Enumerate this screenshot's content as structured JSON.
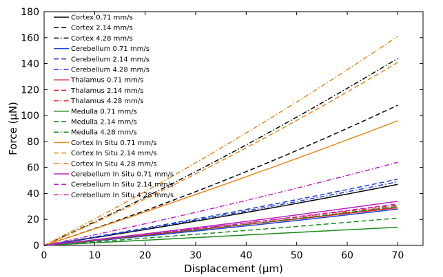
{
  "chart_data": {
    "type": "line",
    "title": "",
    "xlabel": "Displacement (μm)",
    "ylabel": "Force (μN)",
    "xlim": [
      0,
      75
    ],
    "ylim": [
      0,
      180
    ],
    "xticks": [
      "0",
      "10",
      "20",
      "30",
      "40",
      "50",
      "60",
      "70"
    ],
    "yticks": [
      "0",
      "20",
      "40",
      "60",
      "80",
      "100",
      "120",
      "140",
      "160",
      "180"
    ],
    "grid": false,
    "legend_position": "top-left",
    "series": [
      {
        "name": "Cortex 0.71 mm/s",
        "color": "#000000",
        "dash": "solid",
        "x": [
          0,
          35,
          70
        ],
        "y": [
          0,
          22,
          47
        ]
      },
      {
        "name": "Cortex 2.14 mm/s",
        "color": "#000000",
        "dash": "dashed",
        "x": [
          0,
          35,
          70
        ],
        "y": [
          0,
          49,
          108
        ]
      },
      {
        "name": "Cortex 4.28 mm/s",
        "color": "#000000",
        "dash": "dashdot",
        "x": [
          0,
          35,
          70
        ],
        "y": [
          0,
          67,
          144
        ]
      },
      {
        "name": "Cerebellum 0.71 mm/s",
        "color": "#1f3fd6",
        "dash": "solid",
        "x": [
          0,
          35,
          70
        ],
        "y": [
          0,
          13,
          28
        ]
      },
      {
        "name": "Cerebellum 2.14 mm/s",
        "color": "#1f3fd6",
        "dash": "dashed",
        "x": [
          0,
          35,
          70
        ],
        "y": [
          0,
          24,
          51
        ]
      },
      {
        "name": "Cerebellum 4.28 mm/s",
        "color": "#1f3fd6",
        "dash": "dashdot",
        "x": [
          0,
          35,
          70
        ],
        "y": [
          0,
          23,
          49
        ]
      },
      {
        "name": "Thalamus 0.71 mm/s",
        "color": "#e02020",
        "dash": "solid",
        "x": [
          0,
          35,
          70
        ],
        "y": [
          0,
          14,
          29
        ]
      },
      {
        "name": "Thalamus 2.14 mm/s",
        "color": "#e02020",
        "dash": "dashed",
        "x": [
          0,
          35,
          70
        ],
        "y": [
          0,
          14,
          30
        ]
      },
      {
        "name": "Thalamus 4.28 mm/s",
        "color": "#e02020",
        "dash": "dashdot",
        "x": [
          0,
          35,
          70
        ],
        "y": [
          0,
          15,
          31
        ]
      },
      {
        "name": "Medulla 0.71 mm/s",
        "color": "#1a8a1a",
        "dash": "solid",
        "x": [
          0,
          35,
          70
        ],
        "y": [
          0,
          7,
          14
        ]
      },
      {
        "name": "Medulla 2.14 mm/s",
        "color": "#1a8a1a",
        "dash": "dashed",
        "x": [
          0,
          35,
          70
        ],
        "y": [
          0,
          10,
          21
        ]
      },
      {
        "name": "Medulla 4.28 mm/s",
        "color": "#1a8a1a",
        "dash": "dashdot",
        "x": [
          0,
          35,
          70
        ],
        "y": [
          0,
          14,
          30
        ]
      },
      {
        "name": "Cortex In Situ 0.71 mm/s",
        "color": "#e8891a",
        "dash": "solid",
        "x": [
          0,
          35,
          70
        ],
        "y": [
          0,
          46,
          96
        ]
      },
      {
        "name": "Cortex In Situ 2.14 mm/s",
        "color": "#e8891a",
        "dash": "dashed",
        "x": [
          0,
          35,
          70
        ],
        "y": [
          0,
          65,
          141
        ]
      },
      {
        "name": "Cortex In Situ 4.28 mm/s",
        "color": "#e8891a",
        "dash": "dashdot",
        "x": [
          0,
          35,
          70
        ],
        "y": [
          0,
          75,
          161
        ]
      },
      {
        "name": "Cerebellum In Situ 0.71 mm/s",
        "color": "#c020c0",
        "dash": "solid",
        "x": [
          0,
          35,
          70
        ],
        "y": [
          0,
          16,
          34
        ]
      },
      {
        "name": "Cerebellum In Situ 2.14 mm/s",
        "color": "#c020c0",
        "dash": "dashed",
        "x": [
          0,
          35,
          70
        ],
        "y": [
          0,
          15,
          32
        ]
      },
      {
        "name": "Cerebellum In Situ 4.28 mm/s",
        "color": "#c020c0",
        "dash": "dashdot",
        "x": [
          0,
          35,
          70
        ],
        "y": [
          0,
          30,
          64
        ]
      }
    ]
  }
}
